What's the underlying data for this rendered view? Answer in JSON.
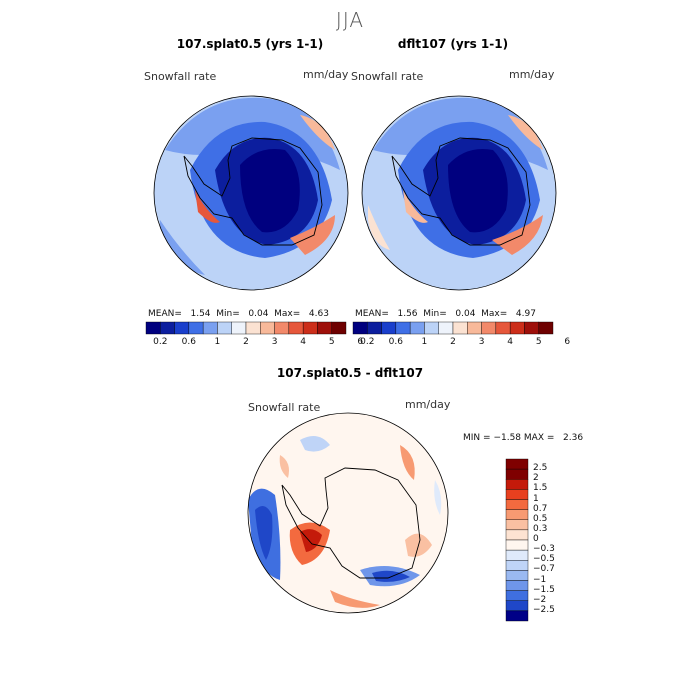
{
  "figure": {
    "season": "JJA",
    "variable_label": "Snowfall rate",
    "units": "mm/day"
  },
  "chart_data": [
    {
      "type": "heatmap",
      "projection": "south polar stereographic",
      "title": "107.splat0.5 (yrs 1-1)",
      "variable": "Snowfall rate",
      "units": "mm/day",
      "stats": {
        "mean": "1.54",
        "min": "0.04",
        "max": "4.63"
      },
      "colorbar": {
        "ticks": [
          "0.2",
          "0.6",
          "1",
          "2",
          "3",
          "4",
          "5",
          "6"
        ]
      }
    },
    {
      "type": "heatmap",
      "projection": "south polar stereographic",
      "title": "dflt107 (yrs 1-1)",
      "variable": "Snowfall rate",
      "units": "mm/day",
      "stats": {
        "mean": "1.56",
        "min": "0.04",
        "max": "4.97"
      },
      "colorbar": {
        "ticks": [
          "0.2",
          "0.6",
          "1",
          "2",
          "3",
          "4",
          "5",
          "6"
        ]
      }
    },
    {
      "type": "heatmap",
      "projection": "south polar stereographic",
      "title": "107.splat0.5 - dflt107",
      "variable": "Snowfall rate",
      "units": "mm/day",
      "stats": {
        "min": "−1.58",
        "max": "2.36"
      },
      "colorbar": {
        "ticks": [
          "2.5",
          "2",
          "1.5",
          "1",
          "0.7",
          "0.5",
          "0.3",
          "0",
          "−0.3",
          "−0.5",
          "−0.7",
          "−1",
          "−1.5",
          "−2",
          "−2.5"
        ]
      }
    }
  ],
  "labels": {
    "mean_prefix": "MEAN=",
    "min_prefix": "Min=",
    "max_prefix": "Max=",
    "diff_min_prefix": "MIN =",
    "diff_max_prefix": "MAX ="
  },
  "palette": {
    "abs": [
      "#00007f",
      "#0c1e9e",
      "#1a3fcc",
      "#3f6fe6",
      "#7aa0f0",
      "#bcd3f7",
      "#eef3fb",
      "#fbe2d2",
      "#f8b99a",
      "#f2896a",
      "#e6573b",
      "#cc2e1a",
      "#9e0f0a",
      "#6e0000"
    ],
    "diff": [
      "#7f0000",
      "#c41a0a",
      "#e8401f",
      "#f36a3f",
      "#f79a72",
      "#fac0a2",
      "#fde3d2",
      "#fff6ef",
      "#dfeafb",
      "#bfd4f7",
      "#9ab9f1",
      "#6f96ea",
      "#3f6fe0",
      "#1f47c8",
      "#000087"
    ]
  }
}
